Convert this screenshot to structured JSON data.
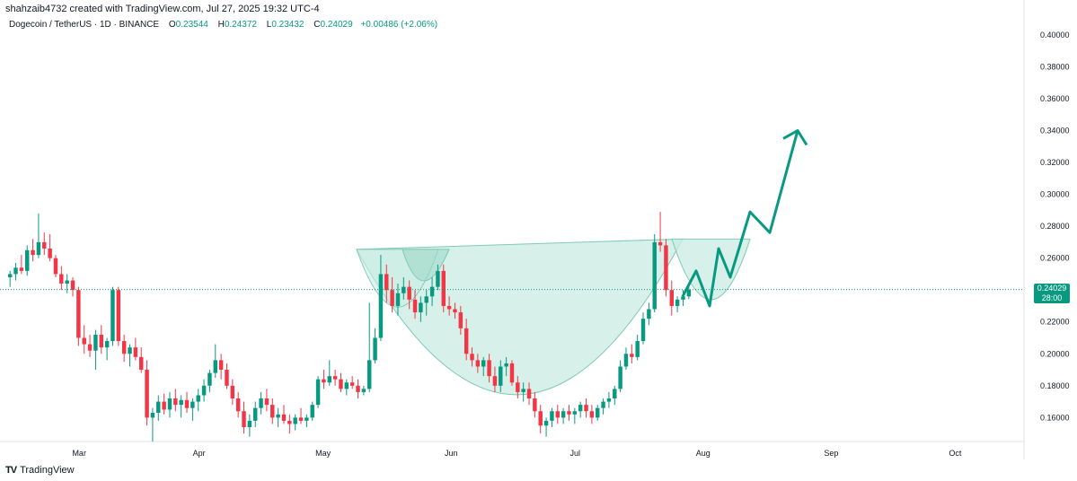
{
  "header": {
    "credit": "shahzaib4732 created with TradingView.com, Jul 27, 2025 19:32 UTC-4",
    "symbol": "Dogecoin / TetherUS · 1D · BINANCE",
    "open_label": "O",
    "open": "0.23544",
    "high_label": "H",
    "high": "0.24372",
    "low_label": "L",
    "low": "0.23432",
    "close_label": "C",
    "close": "0.24029",
    "change": "+0.00486 (+2.06%)"
  },
  "price_tag": {
    "price": "0.24029",
    "countdown": "28:00"
  },
  "footer": {
    "brand": "TradingView"
  },
  "colors": {
    "up": "#089981",
    "down": "#f23645",
    "pattern_fill": "#c9ece3",
    "arrow": "#089981"
  },
  "chart_data": {
    "type": "candlestick",
    "ylim": [
      0.145,
      0.405
    ],
    "y_ticks": [
      "0.40000",
      "0.38000",
      "0.36000",
      "0.34000",
      "0.32000",
      "0.30000",
      "0.28000",
      "0.26000",
      "0.24000",
      "0.22000",
      "0.20000",
      "0.18000",
      "0.16000"
    ],
    "x_ticks": [
      {
        "label": "Mar",
        "day": 17
      },
      {
        "label": "Apr",
        "day": 46
      },
      {
        "label": "May",
        "day": 76
      },
      {
        "label": "Jun",
        "day": 107
      },
      {
        "label": "Jul",
        "day": 137
      },
      {
        "label": "Aug",
        "day": 168
      },
      {
        "label": "Sep",
        "day": 199
      },
      {
        "label": "Oct",
        "day": 229
      }
    ],
    "last_price": 0.24029,
    "candles": [
      [
        0.248,
        0.252,
        0.242,
        0.25
      ],
      [
        0.25,
        0.257,
        0.246,
        0.254
      ],
      [
        0.254,
        0.262,
        0.25,
        0.252
      ],
      [
        0.252,
        0.268,
        0.249,
        0.265
      ],
      [
        0.265,
        0.272,
        0.258,
        0.262
      ],
      [
        0.262,
        0.288,
        0.26,
        0.27
      ],
      [
        0.27,
        0.276,
        0.262,
        0.266
      ],
      [
        0.266,
        0.275,
        0.258,
        0.26
      ],
      [
        0.26,
        0.262,
        0.248,
        0.25
      ],
      [
        0.25,
        0.255,
        0.24,
        0.244
      ],
      [
        0.244,
        0.25,
        0.238,
        0.246
      ],
      [
        0.246,
        0.248,
        0.236,
        0.24
      ],
      [
        0.24,
        0.242,
        0.205,
        0.21
      ],
      [
        0.21,
        0.218,
        0.2,
        0.206
      ],
      [
        0.206,
        0.212,
        0.198,
        0.202
      ],
      [
        0.202,
        0.215,
        0.19,
        0.212
      ],
      [
        0.212,
        0.218,
        0.2,
        0.204
      ],
      [
        0.204,
        0.21,
        0.196,
        0.208
      ],
      [
        0.208,
        0.242,
        0.205,
        0.24
      ],
      [
        0.24,
        0.242,
        0.205,
        0.208
      ],
      [
        0.208,
        0.212,
        0.195,
        0.2
      ],
      [
        0.2,
        0.206,
        0.192,
        0.204
      ],
      [
        0.204,
        0.21,
        0.196,
        0.198
      ],
      [
        0.198,
        0.204,
        0.188,
        0.19
      ],
      [
        0.19,
        0.196,
        0.155,
        0.16
      ],
      [
        0.16,
        0.166,
        0.145,
        0.163
      ],
      [
        0.163,
        0.174,
        0.158,
        0.17
      ],
      [
        0.17,
        0.175,
        0.162,
        0.165
      ],
      [
        0.165,
        0.176,
        0.16,
        0.172
      ],
      [
        0.172,
        0.178,
        0.164,
        0.168
      ],
      [
        0.168,
        0.174,
        0.16,
        0.171
      ],
      [
        0.171,
        0.176,
        0.163,
        0.166
      ],
      [
        0.166,
        0.172,
        0.158,
        0.17
      ],
      [
        0.17,
        0.178,
        0.164,
        0.174
      ],
      [
        0.174,
        0.184,
        0.17,
        0.18
      ],
      [
        0.18,
        0.19,
        0.176,
        0.188
      ],
      [
        0.188,
        0.206,
        0.185,
        0.196
      ],
      [
        0.196,
        0.2,
        0.184,
        0.19
      ],
      [
        0.19,
        0.194,
        0.178,
        0.18
      ],
      [
        0.18,
        0.184,
        0.168,
        0.172
      ],
      [
        0.172,
        0.176,
        0.16,
        0.164
      ],
      [
        0.164,
        0.17,
        0.15,
        0.154
      ],
      [
        0.154,
        0.162,
        0.148,
        0.158
      ],
      [
        0.158,
        0.17,
        0.154,
        0.166
      ],
      [
        0.166,
        0.176,
        0.162,
        0.172
      ],
      [
        0.172,
        0.178,
        0.164,
        0.168
      ],
      [
        0.168,
        0.172,
        0.156,
        0.16
      ],
      [
        0.16,
        0.166,
        0.154,
        0.162
      ],
      [
        0.162,
        0.168,
        0.156,
        0.158
      ],
      [
        0.158,
        0.162,
        0.15,
        0.156
      ],
      [
        0.156,
        0.162,
        0.152,
        0.16
      ],
      [
        0.16,
        0.166,
        0.156,
        0.158
      ],
      [
        0.158,
        0.162,
        0.154,
        0.16
      ],
      [
        0.16,
        0.17,
        0.158,
        0.168
      ],
      [
        0.168,
        0.186,
        0.166,
        0.184
      ],
      [
        0.184,
        0.19,
        0.178,
        0.182
      ],
      [
        0.182,
        0.196,
        0.18,
        0.186
      ],
      [
        0.186,
        0.19,
        0.18,
        0.184
      ],
      [
        0.184,
        0.188,
        0.176,
        0.178
      ],
      [
        0.178,
        0.184,
        0.174,
        0.182
      ],
      [
        0.182,
        0.186,
        0.178,
        0.18
      ],
      [
        0.18,
        0.184,
        0.172,
        0.176
      ],
      [
        0.176,
        0.18,
        0.174,
        0.178
      ],
      [
        0.178,
        0.232,
        0.176,
        0.196
      ],
      [
        0.196,
        0.216,
        0.194,
        0.21
      ],
      [
        0.21,
        0.262,
        0.208,
        0.25
      ],
      [
        0.25,
        0.256,
        0.232,
        0.24
      ],
      [
        0.24,
        0.248,
        0.226,
        0.23
      ],
      [
        0.23,
        0.244,
        0.224,
        0.238
      ],
      [
        0.238,
        0.248,
        0.234,
        0.242
      ],
      [
        0.242,
        0.246,
        0.228,
        0.234
      ],
      [
        0.234,
        0.24,
        0.222,
        0.226
      ],
      [
        0.226,
        0.236,
        0.22,
        0.232
      ],
      [
        0.232,
        0.24,
        0.224,
        0.236
      ],
      [
        0.236,
        0.248,
        0.23,
        0.242
      ],
      [
        0.242,
        0.256,
        0.24,
        0.252
      ],
      [
        0.252,
        0.256,
        0.226,
        0.23
      ],
      [
        0.23,
        0.236,
        0.224,
        0.228
      ],
      [
        0.228,
        0.232,
        0.222,
        0.226
      ],
      [
        0.226,
        0.23,
        0.212,
        0.216
      ],
      [
        0.216,
        0.222,
        0.196,
        0.2
      ],
      [
        0.2,
        0.204,
        0.192,
        0.196
      ],
      [
        0.196,
        0.2,
        0.188,
        0.192
      ],
      [
        0.192,
        0.198,
        0.186,
        0.196
      ],
      [
        0.196,
        0.2,
        0.182,
        0.186
      ],
      [
        0.186,
        0.192,
        0.176,
        0.18
      ],
      [
        0.18,
        0.196,
        0.176,
        0.192
      ],
      [
        0.192,
        0.198,
        0.186,
        0.194
      ],
      [
        0.194,
        0.196,
        0.18,
        0.182
      ],
      [
        0.182,
        0.186,
        0.172,
        0.176
      ],
      [
        0.176,
        0.182,
        0.17,
        0.178
      ],
      [
        0.178,
        0.182,
        0.168,
        0.172
      ],
      [
        0.172,
        0.176,
        0.16,
        0.164
      ],
      [
        0.164,
        0.168,
        0.15,
        0.155
      ],
      [
        0.155,
        0.16,
        0.148,
        0.158
      ],
      [
        0.158,
        0.166,
        0.154,
        0.164
      ],
      [
        0.164,
        0.168,
        0.156,
        0.16
      ],
      [
        0.16,
        0.166,
        0.156,
        0.164
      ],
      [
        0.164,
        0.168,
        0.158,
        0.162
      ],
      [
        0.162,
        0.166,
        0.156,
        0.164
      ],
      [
        0.164,
        0.17,
        0.16,
        0.168
      ],
      [
        0.168,
        0.172,
        0.16,
        0.164
      ],
      [
        0.164,
        0.168,
        0.156,
        0.16
      ],
      [
        0.16,
        0.168,
        0.158,
        0.166
      ],
      [
        0.166,
        0.172,
        0.162,
        0.17
      ],
      [
        0.17,
        0.176,
        0.166,
        0.172
      ],
      [
        0.172,
        0.18,
        0.168,
        0.178
      ],
      [
        0.178,
        0.196,
        0.176,
        0.192
      ],
      [
        0.192,
        0.204,
        0.19,
        0.2
      ],
      [
        0.2,
        0.206,
        0.194,
        0.198
      ],
      [
        0.198,
        0.212,
        0.196,
        0.208
      ],
      [
        0.208,
        0.226,
        0.206,
        0.222
      ],
      [
        0.222,
        0.232,
        0.218,
        0.228
      ],
      [
        0.228,
        0.275,
        0.226,
        0.27
      ],
      [
        0.27,
        0.289,
        0.264,
        0.268
      ],
      [
        0.268,
        0.272,
        0.236,
        0.24
      ],
      [
        0.24,
        0.246,
        0.224,
        0.23
      ],
      [
        0.23,
        0.236,
        0.226,
        0.234
      ],
      [
        0.234,
        0.24,
        0.23,
        0.236
      ],
      [
        0.236,
        0.2437,
        0.2343,
        0.2403
      ]
    ],
    "annotations": {
      "pattern": "cup and handle",
      "projection_arrow": "upward"
    }
  }
}
